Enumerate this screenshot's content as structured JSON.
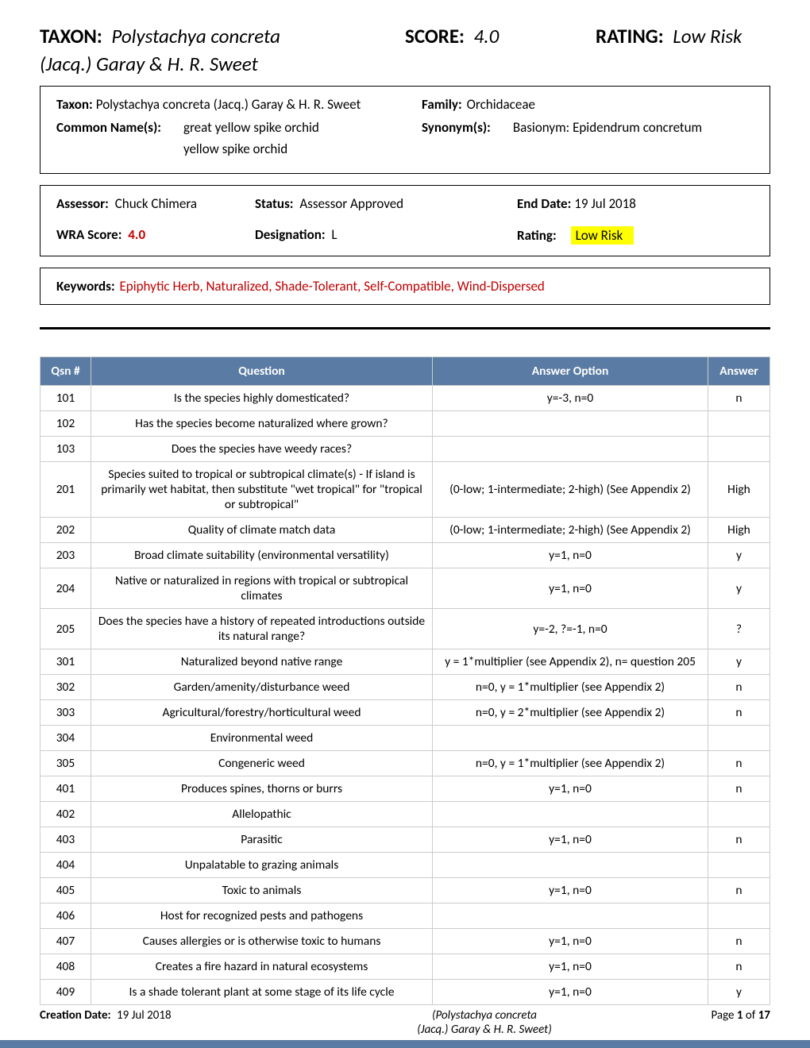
{
  "header": {
    "taxon_label": "TAXON:",
    "taxon_value": "Polystachya concreta",
    "taxon_sub": "(Jacq.) Garay & H. R. Sweet",
    "score_label": "SCORE:",
    "score_value": "4.0",
    "rating_label": "RATING:",
    "rating_value": "Low Risk"
  },
  "info": {
    "taxon_label": "Taxon:",
    "taxon_value": "Polystachya concreta (Jacq.) Garay & H. R. Sweet",
    "family_label": "Family:",
    "family_value": "Orchidaceae",
    "common_label": "Common Name(s):",
    "common_names": [
      "great yellow spike orchid",
      "yellow spike orchid"
    ],
    "synonym_label": "Synonym(s):",
    "synonym_value": "Basionym: Epidendrum concretum"
  },
  "assess": {
    "assessor_label": "Assessor:",
    "assessor_value": "Chuck Chimera",
    "status_label": "Status:",
    "status_value": "Assessor Approved",
    "enddate_label": "End Date:",
    "enddate_value": "19 Jul 2018",
    "wra_label": "WRA Score:",
    "wra_value": "4.0",
    "designation_label": "Designation:",
    "designation_value": "L",
    "rating_label": "Rating:",
    "rating_value": "Low Risk"
  },
  "keywords": {
    "label": "Keywords:",
    "value": "Epiphytic Herb, Naturalized, Shade-Tolerant, Self-Compatible, Wind-Dispersed"
  },
  "table": {
    "headers": {
      "qsn": "Qsn #",
      "question": "Question",
      "option": "Answer Option",
      "answer": "Answer"
    },
    "rows": [
      {
        "qsn": "101",
        "question": "Is the species highly domesticated?",
        "option": "y=-3, n=0",
        "answer": "n"
      },
      {
        "qsn": "102",
        "question": "Has the species become naturalized where grown?",
        "option": "",
        "answer": ""
      },
      {
        "qsn": "103",
        "question": "Does the species have weedy races?",
        "option": "",
        "answer": ""
      },
      {
        "qsn": "201",
        "question": "Species suited to tropical or subtropical climate(s) - If island is primarily wet habitat, then substitute \"wet tropical\" for \"tropical or subtropical\"",
        "option": "(0-low; 1-intermediate; 2-high)  (See Appendix 2)",
        "answer": "High"
      },
      {
        "qsn": "202",
        "question": "Quality of climate match data",
        "option": "(0-low; 1-intermediate; 2-high)  (See Appendix 2)",
        "answer": "High"
      },
      {
        "qsn": "203",
        "question": "Broad climate suitability (environmental versatility)",
        "option": "y=1, n=0",
        "answer": "y"
      },
      {
        "qsn": "204",
        "question": "Native or naturalized in regions with tropical or subtropical climates",
        "option": "y=1, n=0",
        "answer": "y"
      },
      {
        "qsn": "205",
        "question": "Does the species have a history of repeated introductions outside its natural range?",
        "option": "y=-2, ?=-1, n=0",
        "answer": "?"
      },
      {
        "qsn": "301",
        "question": "Naturalized beyond native range",
        "option": "y = 1*multiplier (see Appendix 2), n= question 205",
        "answer": "y"
      },
      {
        "qsn": "302",
        "question": "Garden/amenity/disturbance weed",
        "option": "n=0, y = 1*multiplier (see Appendix 2)",
        "answer": "n"
      },
      {
        "qsn": "303",
        "question": "Agricultural/forestry/horticultural weed",
        "option": "n=0, y = 2*multiplier (see Appendix 2)",
        "answer": "n"
      },
      {
        "qsn": "304",
        "question": "Environmental weed",
        "option": "",
        "answer": ""
      },
      {
        "qsn": "305",
        "question": "Congeneric weed",
        "option": "n=0, y = 1*multiplier (see Appendix 2)",
        "answer": "n"
      },
      {
        "qsn": "401",
        "question": "Produces spines, thorns or burrs",
        "option": "y=1, n=0",
        "answer": "n"
      },
      {
        "qsn": "402",
        "question": "Allelopathic",
        "option": "",
        "answer": ""
      },
      {
        "qsn": "403",
        "question": "Parasitic",
        "option": "y=1, n=0",
        "answer": "n"
      },
      {
        "qsn": "404",
        "question": "Unpalatable to grazing animals",
        "option": "",
        "answer": ""
      },
      {
        "qsn": "405",
        "question": "Toxic to animals",
        "option": "y=1, n=0",
        "answer": "n"
      },
      {
        "qsn": "406",
        "question": "Host for recognized pests and pathogens",
        "option": "",
        "answer": ""
      },
      {
        "qsn": "407",
        "question": "Causes allergies or is otherwise toxic to humans",
        "option": "y=1, n=0",
        "answer": "n"
      },
      {
        "qsn": "408",
        "question": "Creates a fire hazard in natural ecosystems",
        "option": "y=1, n=0",
        "answer": "n"
      },
      {
        "qsn": "409",
        "question": "Is a shade tolerant plant at some stage of its life cycle",
        "option": "y=1, n=0",
        "answer": "y"
      }
    ]
  },
  "footer": {
    "creation_label": "Creation Date:",
    "creation_value": "19 Jul 2018",
    "mid_line1": "(Polystachya concreta",
    "mid_line2": "(Jacq.) Garay & H. R. Sweet)",
    "page_prefix": "Page ",
    "page_current": "1",
    "page_of": " of ",
    "page_total": "17"
  },
  "colors": {
    "header_bg": "#5a7ba3",
    "highlight_bg": "#ffff00",
    "red_text": "#c00000"
  }
}
